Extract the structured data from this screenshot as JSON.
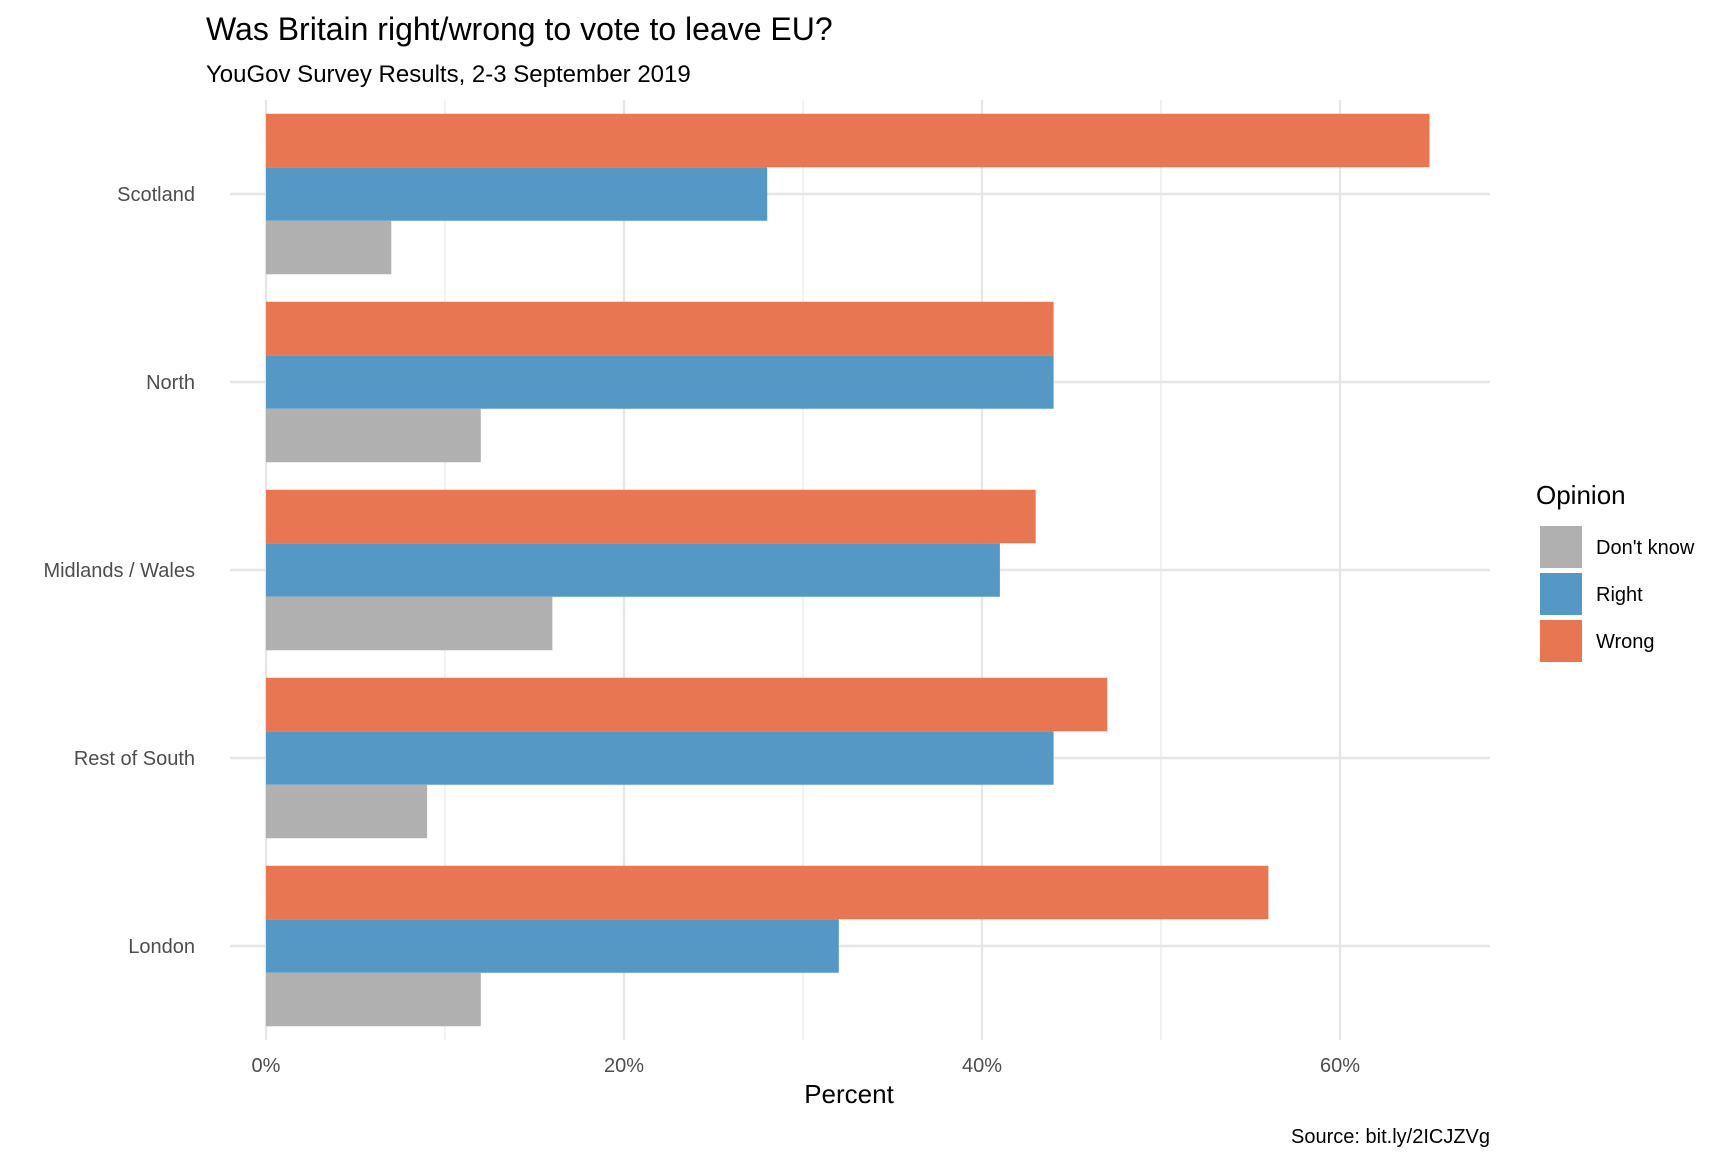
{
  "chart_data": {
    "type": "bar",
    "orientation": "horizontal",
    "title": "Was Britain right/wrong to vote to leave EU?",
    "subtitle": "YouGov Survey Results, 2-3 September 2019",
    "xlabel": "Percent",
    "ylabel": "",
    "caption": "Source: bit.ly/2ICJZVg",
    "categories": [
      "Scotland",
      "North",
      "Midlands / Wales",
      "Rest of South",
      "London"
    ],
    "series": [
      {
        "name": "Wrong",
        "color": "#E87653",
        "values": [
          65,
          44,
          43,
          47,
          56
        ]
      },
      {
        "name": "Right",
        "color": "#5598C6",
        "values": [
          28,
          44,
          41,
          44,
          32
        ]
      },
      {
        "name": "Don't know",
        "color": "#B0B0B0",
        "values": [
          7,
          12,
          16,
          9,
          12
        ]
      }
    ],
    "xlim": [
      0,
      68
    ],
    "x_ticks": [
      0,
      20,
      40,
      60
    ],
    "x_tick_labels": [
      "0%",
      "20%",
      "40%",
      "60%"
    ],
    "grid": true,
    "legend": {
      "title": "Opinion",
      "position": "right",
      "items": [
        {
          "label": "Don't know",
          "color": "#B0B0B0"
        },
        {
          "label": "Right",
          "color": "#5598C6"
        },
        {
          "label": "Wrong",
          "color": "#E87653"
        }
      ]
    }
  }
}
